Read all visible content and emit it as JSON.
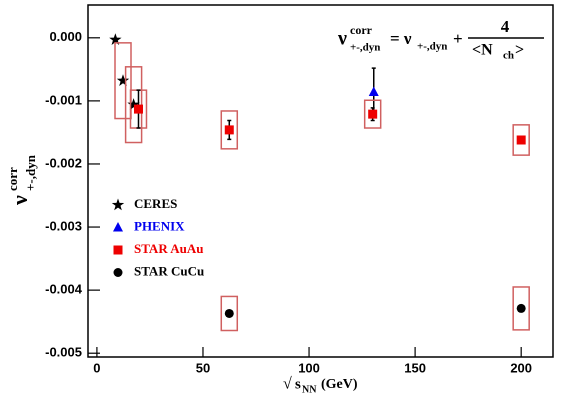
{
  "chart_data": {
    "type": "scatter",
    "annotation": {
      "lhs": "ν",
      "lhs_sup": "corr",
      "lhs_sub": "+-,dyn",
      "rhs": "= ν",
      "rhs_sub": "+-,dyn",
      "plus": "+",
      "num": "4",
      "den": "<N",
      "den_sub": "ch",
      "den_end": ">"
    },
    "ylabel": {
      "main": "ν",
      "sup": "corr",
      "sub": "+-,dyn"
    },
    "xlabel": {
      "root": "√",
      "main": "s",
      "sub": "NN",
      "unit": "(GeV)"
    },
    "xlim": [
      -4.2,
      215
    ],
    "ylim": [
      -0.00506,
      0.00052
    ],
    "xticks": [
      0,
      50,
      100,
      150,
      200
    ],
    "yticks": [
      {
        "value": 0,
        "label": "0.000"
      },
      {
        "value": -0.001,
        "label": "-0.001"
      },
      {
        "value": -0.002,
        "label": "-0.002"
      },
      {
        "value": -0.003,
        "label": "-0.003"
      },
      {
        "value": -0.004,
        "label": "-0.004"
      },
      {
        "value": -0.005,
        "label": "-0.005"
      }
    ],
    "legend": "lower left",
    "series": [
      {
        "name": "CERES",
        "color": "#000000",
        "marker": "star",
        "x": [
          8.7,
          12.3,
          17.3
        ],
        "values": [
          -3e-05,
          -0.00068,
          -0.00106
        ],
        "sys": [
          null,
          0.0006,
          0.0006
        ]
      },
      {
        "name": "PHENIX",
        "color": "#0000ee",
        "marker": "triangle",
        "x": [
          130.5
        ],
        "values": [
          -0.00086
        ],
        "errors": [
          0.00038
        ]
      },
      {
        "name": "STAR AuAu",
        "color": "#ee0000",
        "marker": "square",
        "x": [
          19.6,
          62.4,
          130,
          200
        ],
        "values": [
          -0.00113,
          -0.00146,
          -0.00121,
          -0.00162
        ],
        "errors": [
          0.0003,
          0.00015,
          0.0001,
          5e-05
        ],
        "sys": [
          0.0003,
          0.0003,
          0.00022,
          0.00024
        ]
      },
      {
        "name": "STAR CuCu",
        "color": "#000000",
        "marker": "circle",
        "x": [
          62.4,
          200
        ],
        "values": [
          -0.00437,
          -0.00429
        ],
        "sys": [
          0.00027,
          0.00034
        ]
      }
    ]
  }
}
